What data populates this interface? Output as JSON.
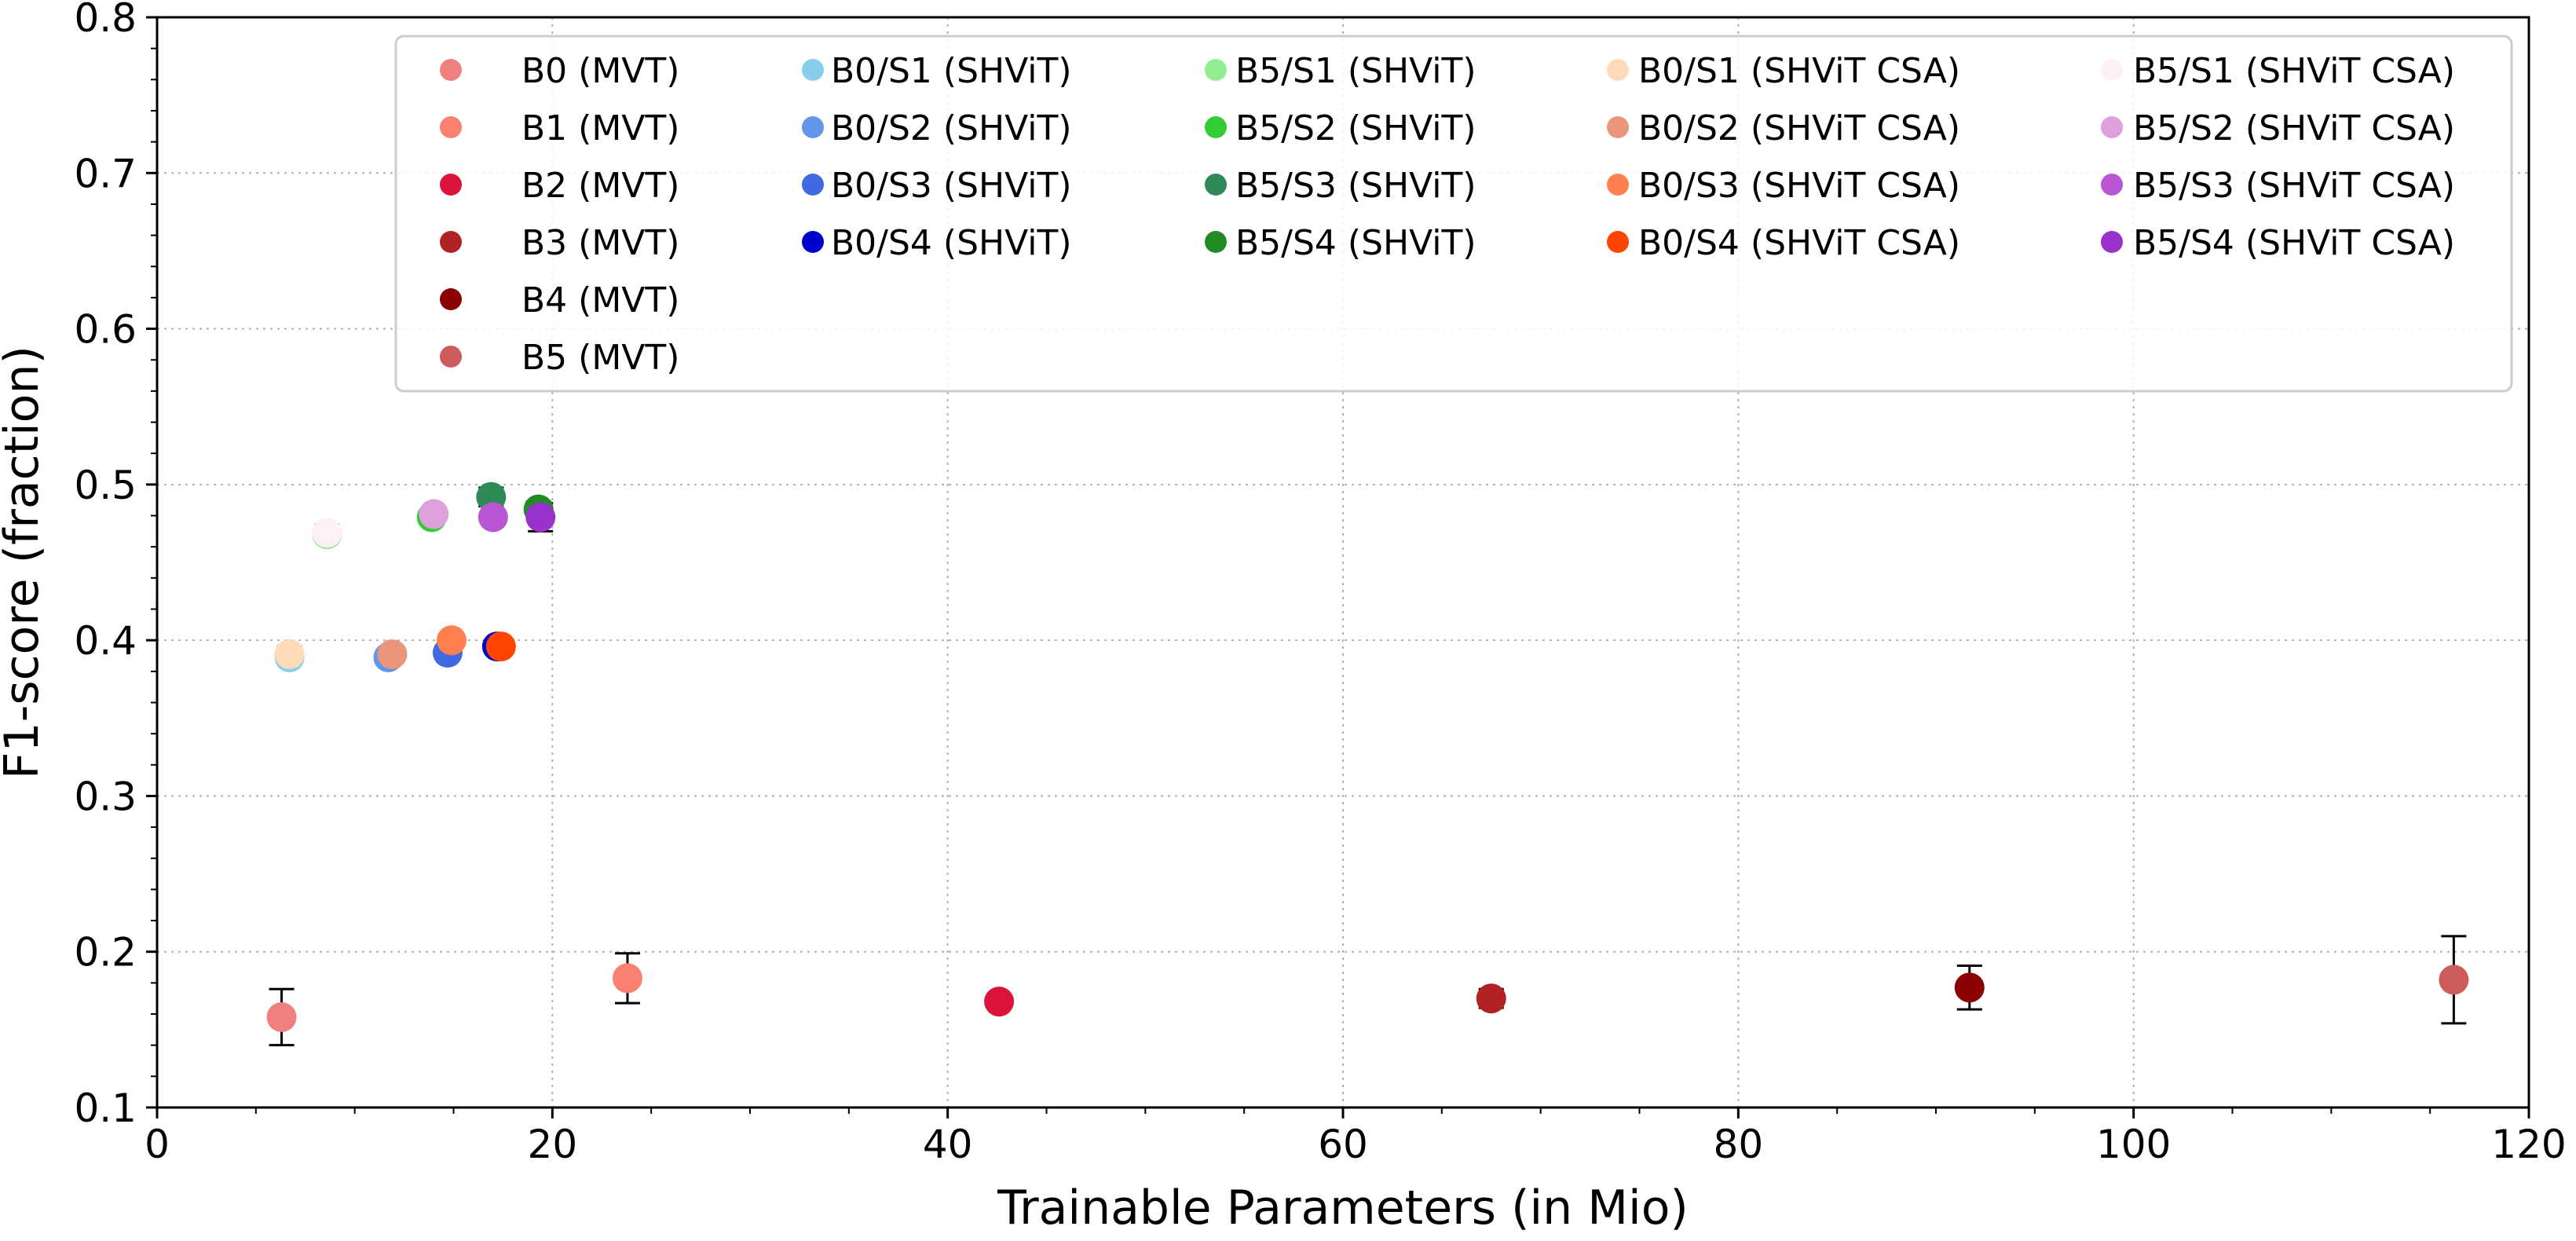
{
  "chart_data": {
    "type": "scatter",
    "title": "",
    "xlabel": "Trainable Parameters (in Mio)",
    "ylabel": "F1-score (fraction)",
    "xlim": [
      0,
      120
    ],
    "ylim": [
      0.1,
      0.8
    ],
    "xticks": [
      "0",
      "20",
      "40",
      "60",
      "80",
      "100",
      "120"
    ],
    "yticks": [
      "0.1",
      "0.2",
      "0.3",
      "0.4",
      "0.5",
      "0.6",
      "0.7",
      "0.8"
    ],
    "grid": true,
    "legend": {
      "position": "top-right",
      "columns": 5
    },
    "series": [
      {
        "name": "B0 (MVT)",
        "color": "#F08080",
        "points": [
          {
            "x": 6.3,
            "y": 0.158,
            "err": 0.018
          }
        ]
      },
      {
        "name": "B1 (MVT)",
        "color": "#FA8072",
        "points": [
          {
            "x": 23.8,
            "y": 0.183,
            "err": 0.016
          }
        ]
      },
      {
        "name": "B2 (MVT)",
        "color": "#DC143C",
        "points": [
          {
            "x": 42.6,
            "y": 0.168,
            "err": 0.004
          }
        ]
      },
      {
        "name": "B3 (MVT)",
        "color": "#B22222",
        "points": [
          {
            "x": 67.5,
            "y": 0.17,
            "err": 0.006
          }
        ]
      },
      {
        "name": "B4 (MVT)",
        "color": "#8B0000",
        "points": [
          {
            "x": 91.7,
            "y": 0.177,
            "err": 0.014
          }
        ]
      },
      {
        "name": "B5 (MVT)",
        "color": "#CD5C5C",
        "points": [
          {
            "x": 116.2,
            "y": 0.182,
            "err": 0.028
          }
        ]
      },
      {
        "name": "B0/S1 (SHViT)",
        "color": "#87CEEB",
        "points": [
          {
            "x": 6.7,
            "y": 0.389,
            "err": 0.004
          }
        ]
      },
      {
        "name": "B0/S2 (SHViT)",
        "color": "#6495ED",
        "points": [
          {
            "x": 11.7,
            "y": 0.389,
            "err": 0.004
          }
        ]
      },
      {
        "name": "B0/S3 (SHViT)",
        "color": "#4169E1",
        "points": [
          {
            "x": 14.7,
            "y": 0.392,
            "err": 0.004
          }
        ]
      },
      {
        "name": "B0/S4 (SHViT)",
        "color": "#0000CD",
        "points": [
          {
            "x": 17.2,
            "y": 0.396,
            "err": 0.004
          }
        ]
      },
      {
        "name": "B5/S1 (SHViT)",
        "color": "#90EE90",
        "points": [
          {
            "x": 8.6,
            "y": 0.468,
            "err": 0.004
          }
        ]
      },
      {
        "name": "B5/S2 (SHViT)",
        "color": "#32CD32",
        "points": [
          {
            "x": 13.9,
            "y": 0.479,
            "err": 0.004
          }
        ]
      },
      {
        "name": "B5/S3 (SHViT)",
        "color": "#2E8B57",
        "points": [
          {
            "x": 16.9,
            "y": 0.492,
            "err": 0.006
          }
        ]
      },
      {
        "name": "B5/S4 (SHViT)",
        "color": "#228B22",
        "points": [
          {
            "x": 19.3,
            "y": 0.484,
            "err": 0.005
          }
        ]
      },
      {
        "name": "B0/S1 (SHViT CSA)",
        "color": "#FFDAB9",
        "points": [
          {
            "x": 6.7,
            "y": 0.391,
            "err": 0.005
          }
        ]
      },
      {
        "name": "B0/S2 (SHViT CSA)",
        "color": "#E9967A",
        "points": [
          {
            "x": 11.9,
            "y": 0.391,
            "err": 0.004
          }
        ]
      },
      {
        "name": "B0/S3 (SHViT CSA)",
        "color": "#FF7F50",
        "points": [
          {
            "x": 14.9,
            "y": 0.4,
            "err": 0.004
          }
        ]
      },
      {
        "name": "B0/S4 (SHViT CSA)",
        "color": "#FF4500",
        "points": [
          {
            "x": 17.4,
            "y": 0.396,
            "err": 0.004
          }
        ]
      },
      {
        "name": "B5/S1 (SHViT CSA)",
        "color": "#FFF0F5",
        "points": [
          {
            "x": 8.6,
            "y": 0.469,
            "err": 0.005
          }
        ]
      },
      {
        "name": "B5/S2 (SHViT CSA)",
        "color": "#DDA0DD",
        "points": [
          {
            "x": 14.0,
            "y": 0.481,
            "err": 0.004
          }
        ]
      },
      {
        "name": "B5/S3 (SHViT CSA)",
        "color": "#BA55D3",
        "points": [
          {
            "x": 17.0,
            "y": 0.479,
            "err": 0.004
          }
        ]
      },
      {
        "name": "B5/S4 (SHViT CSA)",
        "color": "#9932CC",
        "points": [
          {
            "x": 19.4,
            "y": 0.479,
            "err": 0.009
          }
        ]
      }
    ]
  }
}
